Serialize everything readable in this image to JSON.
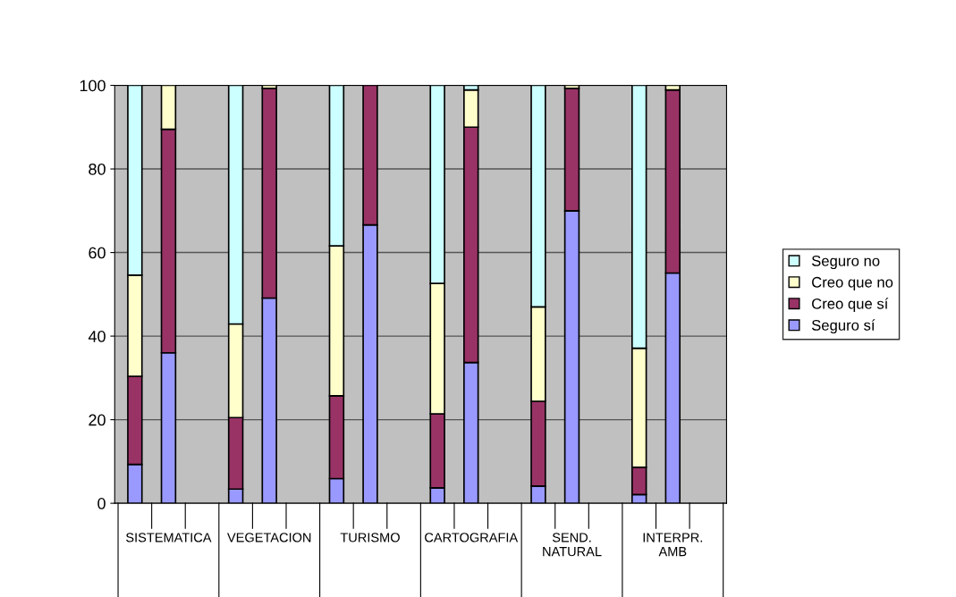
{
  "chart_data": {
    "type": "bar",
    "stacked": true,
    "categories": [
      null,
      null,
      null,
      null,
      null,
      null,
      null,
      null,
      null,
      null,
      null,
      null,
      null,
      null,
      null,
      null,
      null,
      null
    ],
    "series": [
      {
        "name": "Seguro sí",
        "color": "#9999ff",
        "values": [
          9.3,
          36,
          null,
          3.4,
          49.1,
          null,
          5.9,
          66.6,
          null,
          3.7,
          33.7,
          null,
          4.1,
          70,
          null,
          2.1,
          55.1,
          null
        ]
      },
      {
        "name": "Creo que sí",
        "color": "#993366",
        "values": [
          21.1,
          53.5,
          null,
          17.1,
          50.2,
          null,
          19.8,
          33.4,
          null,
          17.7,
          56.3,
          null,
          20.3,
          29.3,
          null,
          6.5,
          43.8,
          null
        ]
      },
      {
        "name": "Creo que no",
        "color": "#ffffcc",
        "values": [
          24.2,
          10.5,
          null,
          22.4,
          0.7,
          null,
          35.9,
          0,
          null,
          31.2,
          8.9,
          null,
          22.6,
          0.7,
          null,
          28.5,
          1.1,
          null
        ]
      },
      {
        "name": "Seguro no",
        "color": "#ccffff",
        "values": [
          45.4,
          0,
          null,
          57.1,
          0,
          null,
          38.4,
          0,
          null,
          47.4,
          1.1,
          null,
          53,
          0,
          null,
          62.9,
          0,
          null
        ]
      }
    ],
    "annotations": [
      "SISTEMATICA",
      "VEGETACION",
      "TURISMO",
      "CARTOGRAFIA",
      "SEND.\nNATURAL",
      "INTERPR.\nAMB"
    ],
    "ylim": [
      0,
      100
    ],
    "yticks": [
      0,
      20,
      40,
      60,
      80,
      100
    ],
    "grid": "y",
    "legend": "right"
  }
}
